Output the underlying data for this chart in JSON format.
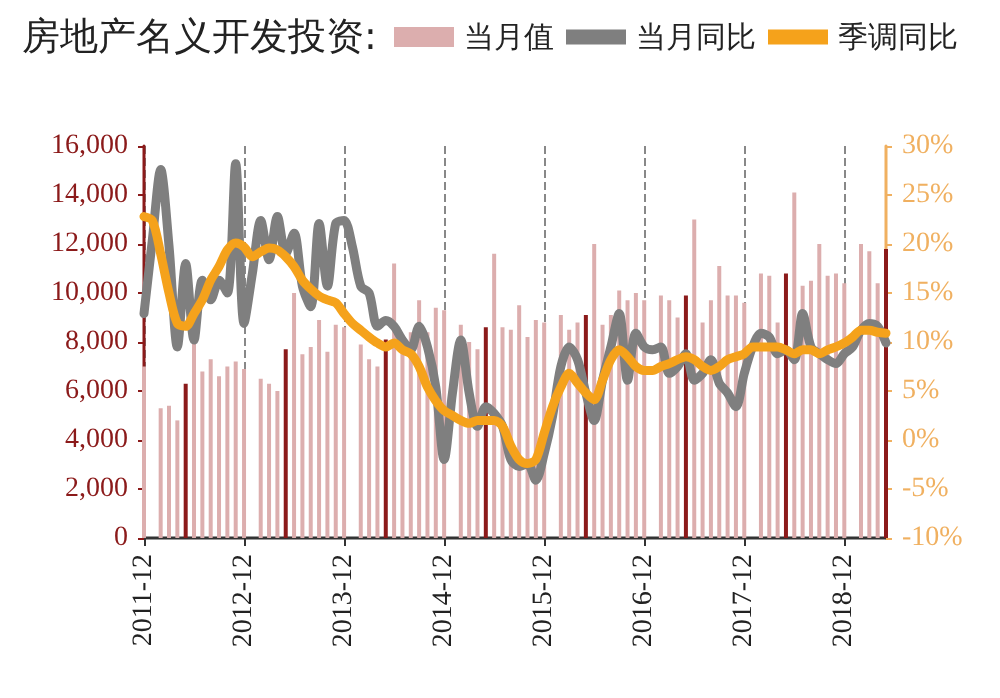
{
  "chart_data": {
    "type": "bar",
    "title": "房地产名义开发投资:",
    "categories": [
      "2011-12",
      null,
      null,
      null,
      null,
      null,
      null,
      null,
      null,
      null,
      null,
      null,
      "2012-12",
      null,
      null,
      null,
      null,
      null,
      null,
      null,
      null,
      null,
      null,
      null,
      "2013-12",
      null,
      null,
      null,
      null,
      null,
      null,
      null,
      null,
      null,
      null,
      null,
      "2014-12",
      null,
      null,
      null,
      null,
      null,
      null,
      null,
      null,
      null,
      null,
      null,
      "2015-12",
      null,
      null,
      null,
      null,
      null,
      null,
      null,
      null,
      null,
      null,
      null,
      "2016-12",
      null,
      null,
      null,
      null,
      null,
      null,
      null,
      null,
      null,
      null,
      null,
      "2017-12",
      null,
      null,
      null,
      null,
      null,
      null,
      null,
      null,
      null,
      null,
      null,
      "2018-12",
      null,
      null,
      null,
      null,
      null
    ],
    "series": [
      {
        "name": "当月值",
        "color": "#dcaeae",
        "values": [
          7000,
          null,
          5300,
          5400,
          4800,
          6300,
          8000,
          6800,
          7300,
          6600,
          7000,
          7200,
          6900,
          null,
          6500,
          6300,
          6000,
          7700,
          10000,
          7500,
          7800,
          8900,
          7600,
          8700,
          8600,
          null,
          7900,
          7300,
          7000,
          8100,
          11200,
          8300,
          8400,
          9700,
          8400,
          9400,
          9300,
          null,
          8700,
          8000,
          7700,
          8600,
          11600,
          8600,
          8500,
          9500,
          8200,
          8900,
          8800,
          null,
          9100,
          8500,
          8800,
          9100,
          12000,
          8700,
          9100,
          10100,
          9700,
          10000,
          9700,
          null,
          9900,
          9700,
          9000,
          9900,
          13000,
          8800,
          9700,
          11100,
          9900,
          9900,
          9600,
          null,
          10800,
          10700,
          8800,
          10800,
          14100,
          10300,
          10500,
          12000,
          10700,
          10800,
          10400,
          null,
          12000,
          11700,
          10400,
          11800
        ],
        "colors": [
          "#dcaeae",
          "#dcaeae",
          "#dcaeae",
          "#dcaeae",
          "#dcaeae",
          "#8b1a1a",
          "#dcaeae",
          "#dcaeae",
          "#dcaeae",
          "#dcaeae",
          "#dcaeae",
          "#dcaeae",
          "#dcaeae",
          "#dcaeae",
          "#dcaeae",
          "#dcaeae",
          "#dcaeae",
          "#8b1a1a",
          "#dcaeae",
          "#dcaeae",
          "#dcaeae",
          "#dcaeae",
          "#dcaeae",
          "#dcaeae",
          "#dcaeae",
          "#dcaeae",
          "#dcaeae",
          "#dcaeae",
          "#dcaeae",
          "#8b1a1a",
          "#dcaeae",
          "#dcaeae",
          "#dcaeae",
          "#dcaeae",
          "#dcaeae",
          "#dcaeae",
          "#dcaeae",
          "#dcaeae",
          "#dcaeae",
          "#dcaeae",
          "#dcaeae",
          "#8b1a1a",
          "#dcaeae",
          "#dcaeae",
          "#dcaeae",
          "#dcaeae",
          "#dcaeae",
          "#dcaeae",
          "#dcaeae",
          "#dcaeae",
          "#dcaeae",
          "#dcaeae",
          "#dcaeae",
          "#8b1a1a",
          "#dcaeae",
          "#dcaeae",
          "#dcaeae",
          "#dcaeae",
          "#dcaeae",
          "#dcaeae",
          "#dcaeae",
          "#dcaeae",
          "#dcaeae",
          "#dcaeae",
          "#dcaeae",
          "#8b1a1a",
          "#dcaeae",
          "#dcaeae",
          "#dcaeae",
          "#dcaeae",
          "#dcaeae",
          "#dcaeae",
          "#dcaeae",
          "#dcaeae",
          "#dcaeae",
          "#dcaeae",
          "#dcaeae",
          "#8b1a1a",
          "#dcaeae",
          "#dcaeae",
          "#dcaeae",
          "#dcaeae",
          "#dcaeae",
          "#dcaeae",
          "#dcaeae",
          "#dcaeae",
          "#dcaeae",
          "#dcaeae",
          "#dcaeae",
          "#8b1a1a"
        ]
      },
      {
        "name": "当月同比",
        "type": "line",
        "axis": "y2",
        "color": "#7f7f7f",
        "values": [
          12.9,
          20.4,
          27.6,
          19.8,
          9.5,
          18.0,
          10.2,
          16.3,
          14.3,
          16.3,
          15.0,
          28.2,
          11.9,
          17.0,
          22.4,
          18.4,
          22.8,
          19.0,
          21.1,
          15.7,
          13.6,
          22.1,
          15.7,
          22.1,
          22.4,
          19.7,
          15.7,
          15.0,
          11.6,
          12.2,
          11.6,
          10.2,
          9.2,
          11.6,
          9.5,
          5.4,
          -2.0,
          4.8,
          10.2,
          4.8,
          1.4,
          3.4,
          2.7,
          1.4,
          -2.0,
          -2.7,
          -2.4,
          -4.1,
          -1.4,
          2.4,
          7.5,
          9.5,
          8.2,
          4.8,
          2.0,
          6.1,
          9.5,
          12.9,
          6.1,
          10.9,
          9.5,
          9.2,
          9.5,
          6.8,
          7.5,
          8.8,
          6.1,
          6.8,
          8.2,
          5.8,
          4.8,
          3.4,
          6.8,
          9.5,
          10.9,
          10.5,
          8.8,
          9.2,
          8.2,
          12.9,
          9.5,
          8.8,
          8.2,
          7.8,
          8.8,
          9.5,
          11.2,
          11.9,
          11.6,
          9.9
        ]
      },
      {
        "name": "季调同比",
        "type": "line",
        "axis": "y2",
        "color": "#f5a21b",
        "values": [
          22.8,
          22.4,
          19.0,
          15.0,
          11.9,
          11.6,
          12.9,
          14.3,
          16.3,
          17.7,
          19.4,
          20.1,
          19.7,
          18.7,
          19.2,
          19.6,
          19.4,
          18.7,
          17.7,
          16.3,
          15.4,
          14.7,
          14.3,
          14.0,
          12.9,
          11.9,
          11.2,
          10.5,
          9.9,
          9.5,
          9.9,
          9.2,
          8.8,
          7.5,
          5.4,
          4.0,
          3.0,
          2.5,
          2.0,
          1.7,
          2.0,
          2.0,
          2.0,
          1.4,
          -0.6,
          -2.0,
          -2.4,
          -2.0,
          0.7,
          3.4,
          5.4,
          6.8,
          5.8,
          4.8,
          4.1,
          6.1,
          8.2,
          9.2,
          8.5,
          7.5,
          7.1,
          7.1,
          7.5,
          7.8,
          8.2,
          8.5,
          8.2,
          7.5,
          7.1,
          7.5,
          8.2,
          8.5,
          8.8,
          9.5,
          9.5,
          9.5,
          9.5,
          9.2,
          8.8,
          9.2,
          9.2,
          8.8,
          9.2,
          9.5,
          9.9,
          10.5,
          11.2,
          11.2,
          11.0,
          10.9
        ]
      }
    ],
    "ylim": [
      0,
      16000
    ],
    "yticks": [
      {
        "value": 0,
        "label": "0"
      },
      {
        "value": 2000,
        "label": "2,000"
      },
      {
        "value": 4000,
        "label": "4,000"
      },
      {
        "value": 6000,
        "label": "6,000"
      },
      {
        "value": 8000,
        "label": "8,000"
      },
      {
        "value": 10000,
        "label": "10,000"
      },
      {
        "value": 12000,
        "label": "12,000"
      },
      {
        "value": 14000,
        "label": "14,000"
      },
      {
        "value": 16000,
        "label": "16,000"
      }
    ],
    "y2lim": [
      -10,
      30
    ],
    "y2ticks": [
      {
        "value": -10,
        "label": "-10%"
      },
      {
        "value": -5,
        "label": "-5%"
      },
      {
        "value": 0,
        "label": "0%"
      },
      {
        "value": 5,
        "label": "5%"
      },
      {
        "value": 10,
        "label": "10%"
      },
      {
        "value": 15,
        "label": "15%"
      },
      {
        "value": 20,
        "label": "20%"
      },
      {
        "value": 25,
        "label": "25%"
      },
      {
        "value": 30,
        "label": "30%"
      }
    ],
    "grid": "x",
    "legend": "top",
    "marker": "none"
  }
}
